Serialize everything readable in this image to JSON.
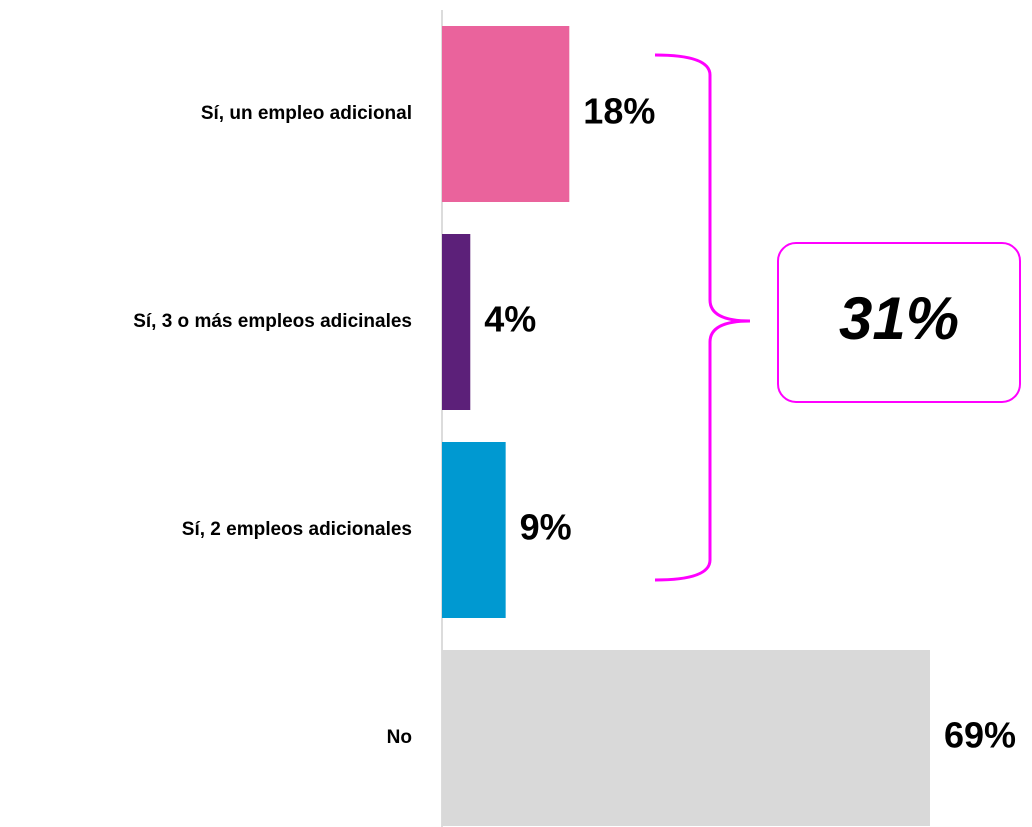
{
  "chart_data": {
    "type": "bar",
    "orientation": "horizontal",
    "categories": [
      "Sí, un empleo adicional",
      "Sí, 3 o más empleos adicinales",
      "Sí, 2 empleos adicionales",
      "No"
    ],
    "values": [
      18,
      4,
      9,
      69
    ],
    "value_labels": [
      "18%",
      "4%",
      "9%",
      "69%"
    ],
    "colors": [
      "#ea639c",
      "#5c2079",
      "#0099d1",
      "#d9d9d9"
    ],
    "annotation": "31%"
  }
}
